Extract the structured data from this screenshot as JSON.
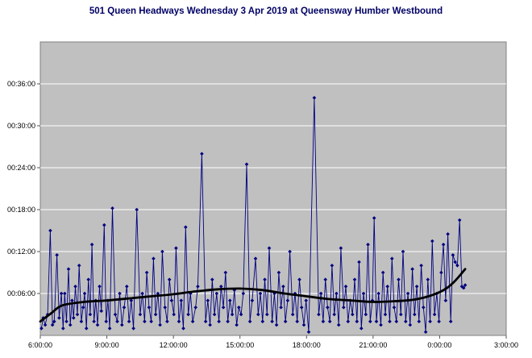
{
  "chart_data": {
    "type": "scatter",
    "title": "501 Queen Headways Wednesday 3 Apr 2019 at Queensway Humber Westbound",
    "xlabel": "",
    "ylabel": "",
    "x_unit": "time of day (decimal hours, 24+ means after midnight)",
    "y_unit": "headway (minutes)",
    "xlim": [
      6,
      27
    ],
    "ylim_minutes": [
      0,
      42
    ],
    "grid": "horizontal-only",
    "legend": "none",
    "plot_bg": "#c0c0c0",
    "gridline_color": "#ffffff",
    "plot_border_color": "#808080",
    "series_color": "#000080",
    "trend_color": "#000000",
    "title_color": "#000066",
    "x_axis": {
      "ticks": [
        {
          "label": "6:00:00",
          "hour": 6
        },
        {
          "label": "9:00:00",
          "hour": 9
        },
        {
          "label": "12:00:00",
          "hour": 12
        },
        {
          "label": "15:00:00",
          "hour": 15
        },
        {
          "label": "18:00:00",
          "hour": 18
        },
        {
          "label": "21:00:00",
          "hour": 21
        },
        {
          "label": "0:00:00",
          "hour": 24
        },
        {
          "label": "3:00:00",
          "hour": 27
        }
      ]
    },
    "y_axis": {
      "ticks": [
        {
          "label": "00:06:00",
          "minutes": 6
        },
        {
          "label": "00:12:00",
          "minutes": 12
        },
        {
          "label": "00:18:00",
          "minutes": 18
        },
        {
          "label": "00:24:00",
          "minutes": 24
        },
        {
          "label": "00:30:00",
          "minutes": 30
        },
        {
          "label": "00:36:00",
          "minutes": 36
        }
      ]
    },
    "series": [
      {
        "name": "headways",
        "marker": "diamond",
        "points": [
          [
            6.05,
            1.0
          ],
          [
            6.13,
            2.5
          ],
          [
            6.22,
            1.5
          ],
          [
            6.33,
            3.0
          ],
          [
            6.45,
            15.0
          ],
          [
            6.55,
            1.5
          ],
          [
            6.63,
            2.0
          ],
          [
            6.75,
            11.5
          ],
          [
            6.85,
            2.5
          ],
          [
            6.95,
            6.0
          ],
          [
            7.03,
            1.0
          ],
          [
            7.1,
            6.0
          ],
          [
            7.18,
            2.0
          ],
          [
            7.27,
            9.5
          ],
          [
            7.35,
            1.5
          ],
          [
            7.43,
            5.0
          ],
          [
            7.5,
            2.5
          ],
          [
            7.58,
            7.0
          ],
          [
            7.67,
            3.0
          ],
          [
            7.75,
            10.0
          ],
          [
            7.85,
            2.0
          ],
          [
            7.93,
            4.0
          ],
          [
            8.0,
            6.0
          ],
          [
            8.08,
            1.0
          ],
          [
            8.17,
            8.0
          ],
          [
            8.25,
            3.0
          ],
          [
            8.33,
            13.0
          ],
          [
            8.42,
            2.0
          ],
          [
            8.5,
            5.0
          ],
          [
            8.58,
            1.5
          ],
          [
            8.67,
            7.0
          ],
          [
            8.75,
            3.5
          ],
          [
            8.88,
            15.8
          ],
          [
            8.97,
            2.0
          ],
          [
            9.05,
            5.0
          ],
          [
            9.13,
            1.0
          ],
          [
            9.25,
            18.2
          ],
          [
            9.38,
            3.0
          ],
          [
            9.47,
            2.0
          ],
          [
            9.58,
            6.0
          ],
          [
            9.68,
            1.5
          ],
          [
            9.78,
            4.0
          ],
          [
            9.9,
            7.0
          ],
          [
            10.0,
            2.0
          ],
          [
            10.1,
            5.0
          ],
          [
            10.2,
            1.0
          ],
          [
            10.35,
            18.0
          ],
          [
            10.5,
            3.0
          ],
          [
            10.6,
            6.0
          ],
          [
            10.7,
            2.0
          ],
          [
            10.8,
            9.0
          ],
          [
            10.9,
            4.0
          ],
          [
            11.0,
            2.0
          ],
          [
            11.1,
            11.0
          ],
          [
            11.2,
            3.0
          ],
          [
            11.3,
            6.0
          ],
          [
            11.4,
            1.5
          ],
          [
            11.5,
            12.0
          ],
          [
            11.62,
            4.0
          ],
          [
            11.72,
            2.0
          ],
          [
            11.82,
            8.0
          ],
          [
            11.92,
            5.0
          ],
          [
            12.02,
            3.0
          ],
          [
            12.12,
            12.5
          ],
          [
            12.25,
            2.0
          ],
          [
            12.35,
            5.0
          ],
          [
            12.45,
            1.0
          ],
          [
            12.55,
            15.5
          ],
          [
            12.67,
            3.0
          ],
          [
            12.77,
            6.0
          ],
          [
            12.87,
            2.0
          ],
          [
            13.0,
            4.0
          ],
          [
            13.1,
            7.0
          ],
          [
            13.28,
            26.0
          ],
          [
            13.45,
            2.0
          ],
          [
            13.55,
            5.0
          ],
          [
            13.65,
            1.5
          ],
          [
            13.75,
            8.0
          ],
          [
            13.85,
            3.0
          ],
          [
            13.95,
            6.0
          ],
          [
            14.05,
            2.0
          ],
          [
            14.15,
            7.0
          ],
          [
            14.25,
            4.0
          ],
          [
            14.35,
            9.0
          ],
          [
            14.45,
            2.0
          ],
          [
            14.55,
            5.0
          ],
          [
            14.65,
            3.0
          ],
          [
            14.75,
            6.5
          ],
          [
            14.85,
            1.5
          ],
          [
            14.95,
            4.0
          ],
          [
            15.05,
            3.0
          ],
          [
            15.15,
            6.0
          ],
          [
            15.3,
            24.5
          ],
          [
            15.45,
            2.0
          ],
          [
            15.55,
            5.0
          ],
          [
            15.7,
            11.0
          ],
          [
            15.82,
            3.0
          ],
          [
            15.92,
            6.0
          ],
          [
            16.02,
            2.0
          ],
          [
            16.12,
            8.0
          ],
          [
            16.22,
            3.0
          ],
          [
            16.32,
            12.5
          ],
          [
            16.45,
            2.0
          ],
          [
            16.55,
            6.0
          ],
          [
            16.65,
            1.5
          ],
          [
            16.75,
            9.0
          ],
          [
            16.85,
            4.0
          ],
          [
            16.95,
            7.0
          ],
          [
            17.05,
            2.0
          ],
          [
            17.15,
            5.0
          ],
          [
            17.25,
            12.0
          ],
          [
            17.38,
            3.0
          ],
          [
            17.48,
            6.0
          ],
          [
            17.58,
            2.0
          ],
          [
            17.68,
            8.0
          ],
          [
            17.78,
            4.0
          ],
          [
            17.88,
            1.5
          ],
          [
            17.98,
            5.0
          ],
          [
            18.1,
            0.5
          ],
          [
            18.35,
            34.0
          ],
          [
            18.55,
            3.0
          ],
          [
            18.65,
            6.0
          ],
          [
            18.75,
            2.0
          ],
          [
            18.85,
            8.0
          ],
          [
            18.95,
            4.0
          ],
          [
            19.05,
            2.0
          ],
          [
            19.15,
            10.0
          ],
          [
            19.25,
            3.0
          ],
          [
            19.35,
            6.0
          ],
          [
            19.45,
            1.5
          ],
          [
            19.55,
            12.5
          ],
          [
            19.67,
            4.0
          ],
          [
            19.77,
            7.0
          ],
          [
            19.87,
            2.0
          ],
          [
            19.97,
            5.0
          ],
          [
            20.07,
            3.0
          ],
          [
            20.17,
            8.0
          ],
          [
            20.27,
            2.0
          ],
          [
            20.37,
            10.5
          ],
          [
            20.47,
            1.0
          ],
          [
            20.57,
            6.0
          ],
          [
            20.67,
            3.0
          ],
          [
            20.77,
            13.0
          ],
          [
            20.87,
            2.0
          ],
          [
            20.97,
            5.0
          ],
          [
            21.05,
            16.8
          ],
          [
            21.15,
            2.0
          ],
          [
            21.25,
            6.0
          ],
          [
            21.35,
            1.5
          ],
          [
            21.45,
            9.0
          ],
          [
            21.55,
            3.0
          ],
          [
            21.65,
            7.0
          ],
          [
            21.75,
            2.0
          ],
          [
            21.85,
            11.0
          ],
          [
            21.95,
            4.0
          ],
          [
            22.05,
            2.0
          ],
          [
            22.15,
            8.0
          ],
          [
            22.25,
            3.0
          ],
          [
            22.35,
            12.0
          ],
          [
            22.47,
            2.0
          ],
          [
            22.57,
            6.0
          ],
          [
            22.67,
            1.5
          ],
          [
            22.77,
            9.5
          ],
          [
            22.87,
            3.0
          ],
          [
            22.97,
            7.0
          ],
          [
            23.07,
            2.0
          ],
          [
            23.17,
            10.0
          ],
          [
            23.27,
            4.0
          ],
          [
            23.37,
            0.5
          ],
          [
            23.47,
            8.0
          ],
          [
            23.57,
            2.0
          ],
          [
            23.67,
            13.5
          ],
          [
            23.77,
            3.0
          ],
          [
            23.87,
            6.0
          ],
          [
            23.97,
            2.0
          ],
          [
            24.07,
            9.0
          ],
          [
            24.17,
            13.0
          ],
          [
            24.27,
            5.0
          ],
          [
            24.37,
            14.5
          ],
          [
            24.5,
            2.0
          ],
          [
            24.6,
            11.5
          ],
          [
            24.7,
            10.5
          ],
          [
            24.8,
            10.0
          ],
          [
            24.9,
            16.5
          ],
          [
            25.0,
            7.0
          ],
          [
            25.08,
            6.8
          ],
          [
            25.15,
            7.2
          ]
        ]
      }
    ],
    "trend": {
      "name": "smoothed-trend",
      "points": [
        [
          6.0,
          2.0
        ],
        [
          6.5,
          3.2
        ],
        [
          7.0,
          4.3
        ],
        [
          8.0,
          4.8
        ],
        [
          9.0,
          5.0
        ],
        [
          10.0,
          5.3
        ],
        [
          11.0,
          5.6
        ],
        [
          12.0,
          5.9
        ],
        [
          13.0,
          6.3
        ],
        [
          14.0,
          6.6
        ],
        [
          15.0,
          6.7
        ],
        [
          16.0,
          6.5
        ],
        [
          17.0,
          6.0
        ],
        [
          18.0,
          5.6
        ],
        [
          19.0,
          5.2
        ],
        [
          20.0,
          5.0
        ],
        [
          21.0,
          4.8
        ],
        [
          22.0,
          4.9
        ],
        [
          23.0,
          5.2
        ],
        [
          24.0,
          6.2
        ],
        [
          24.6,
          7.5
        ],
        [
          25.15,
          9.5
        ]
      ]
    }
  }
}
